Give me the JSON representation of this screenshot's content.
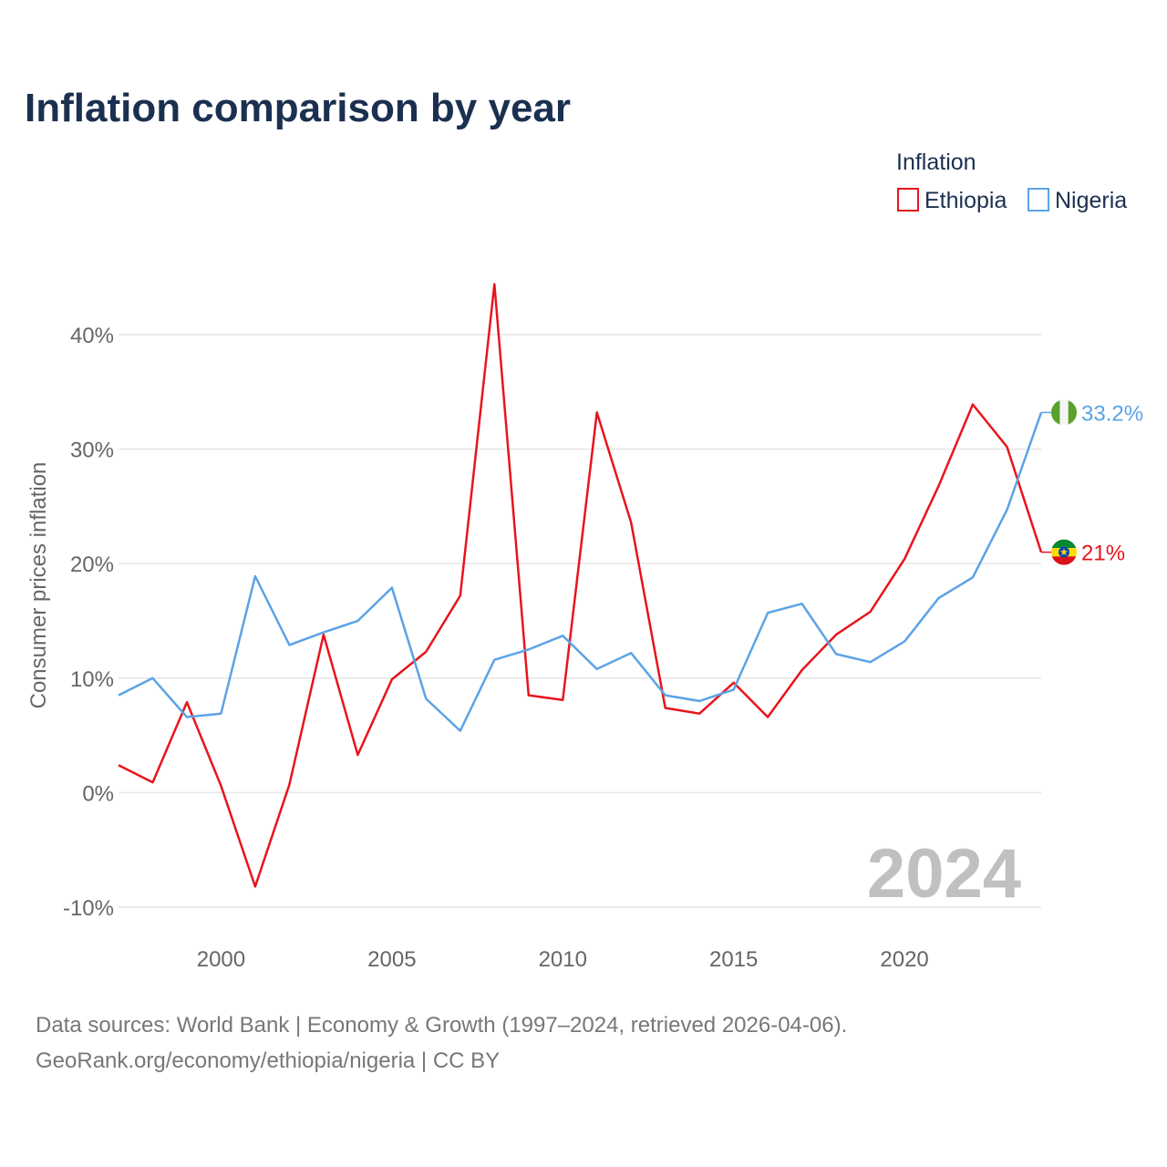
{
  "chart_data": {
    "type": "line",
    "title": "Inflation comparison by year",
    "ylabel": "Consumer prices inflation",
    "xlabel": "",
    "x": [
      1997,
      1998,
      1999,
      2000,
      2001,
      2002,
      2003,
      2004,
      2005,
      2006,
      2007,
      2008,
      2009,
      2010,
      2011,
      2012,
      2013,
      2014,
      2015,
      2016,
      2017,
      2018,
      2019,
      2020,
      2021,
      2022,
      2023,
      2024
    ],
    "xlim": [
      1997,
      2024
    ],
    "ylim": [
      -10,
      45
    ],
    "x_ticks": [
      {
        "value": 2000,
        "label": "2000"
      },
      {
        "value": 2005,
        "label": "2005"
      },
      {
        "value": 2010,
        "label": "2010"
      },
      {
        "value": 2015,
        "label": "2015"
      },
      {
        "value": 2020,
        "label": "2020"
      }
    ],
    "y_ticks": [
      {
        "value": -10,
        "label": "-10%"
      },
      {
        "value": 0,
        "label": "0%"
      },
      {
        "value": 10,
        "label": "10%"
      },
      {
        "value": 20,
        "label": "20%"
      },
      {
        "value": 30,
        "label": "30%"
      },
      {
        "value": 40,
        "label": "40%"
      }
    ],
    "legend_title": "Inflation",
    "legend_position": "top-right",
    "series": [
      {
        "name": "Ethiopia",
        "color": "#e8141c",
        "end_label": "21%",
        "values": [
          2.4,
          0.9,
          7.9,
          0.6,
          -8.2,
          0.7,
          13.8,
          3.3,
          9.9,
          12.3,
          17.2,
          44.4,
          8.5,
          8.1,
          33.2,
          23.6,
          7.4,
          6.9,
          9.6,
          6.6,
          10.7,
          13.8,
          15.8,
          20.4,
          26.8,
          33.9,
          30.2,
          21.0
        ]
      },
      {
        "name": "Nigeria",
        "color": "#5ba3e6",
        "end_label": "33.2%",
        "values": [
          8.5,
          10.0,
          6.6,
          6.9,
          18.9,
          12.9,
          14.0,
          15.0,
          17.9,
          8.2,
          5.4,
          11.6,
          12.5,
          13.7,
          10.8,
          12.2,
          8.5,
          8.0,
          9.0,
          15.7,
          16.5,
          12.1,
          11.4,
          13.2,
          17.0,
          18.8,
          24.7,
          33.2
        ]
      }
    ],
    "watermark_year": "2024",
    "source_lines": [
      "Data sources: World Bank | Economy & Growth (1997–2024, retrieved 2026-04-06).",
      "GeoRank.org/economy/ethiopia/nigeria | CC BY"
    ]
  },
  "colors": {
    "title": "#1b3050",
    "axis_text": "#666666",
    "grid": "#e6e6e6",
    "watermark": "#c0c0c0",
    "source": "#777777"
  }
}
